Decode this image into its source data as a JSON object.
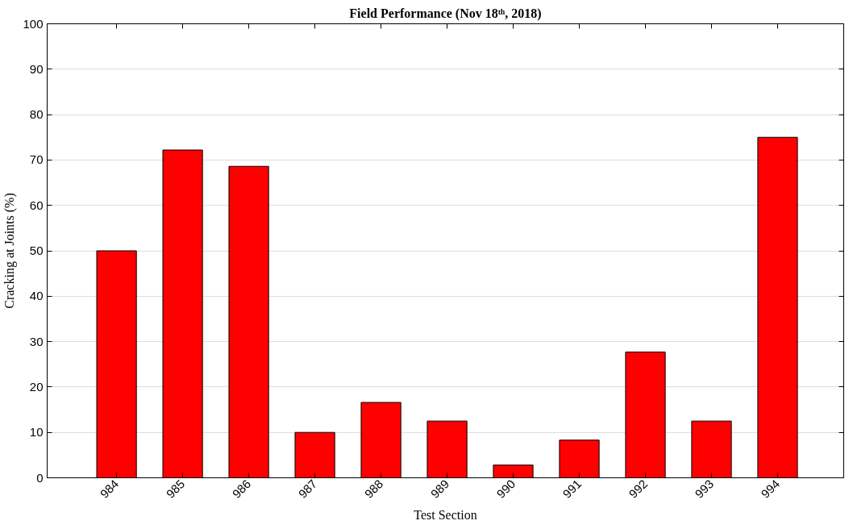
{
  "chart_data": {
    "type": "bar",
    "title": "Field Performance (Nov 18ᵗʰ, 2018)",
    "xlabel": "Test Section",
    "ylabel": "Cracking at Joints (%)",
    "categories": [
      "984",
      "985",
      "986",
      "987",
      "988",
      "989",
      "990",
      "991",
      "992",
      "993",
      "994"
    ],
    "values": [
      50,
      72.2,
      68.6,
      10,
      16.6,
      12.5,
      2.8,
      8.3,
      27.7,
      12.5,
      75
    ],
    "color": "#ff0000",
    "ylim": [
      0,
      100
    ],
    "yticks": [
      0,
      10,
      20,
      30,
      40,
      50,
      60,
      70,
      80,
      90,
      100
    ],
    "grid": "y"
  }
}
